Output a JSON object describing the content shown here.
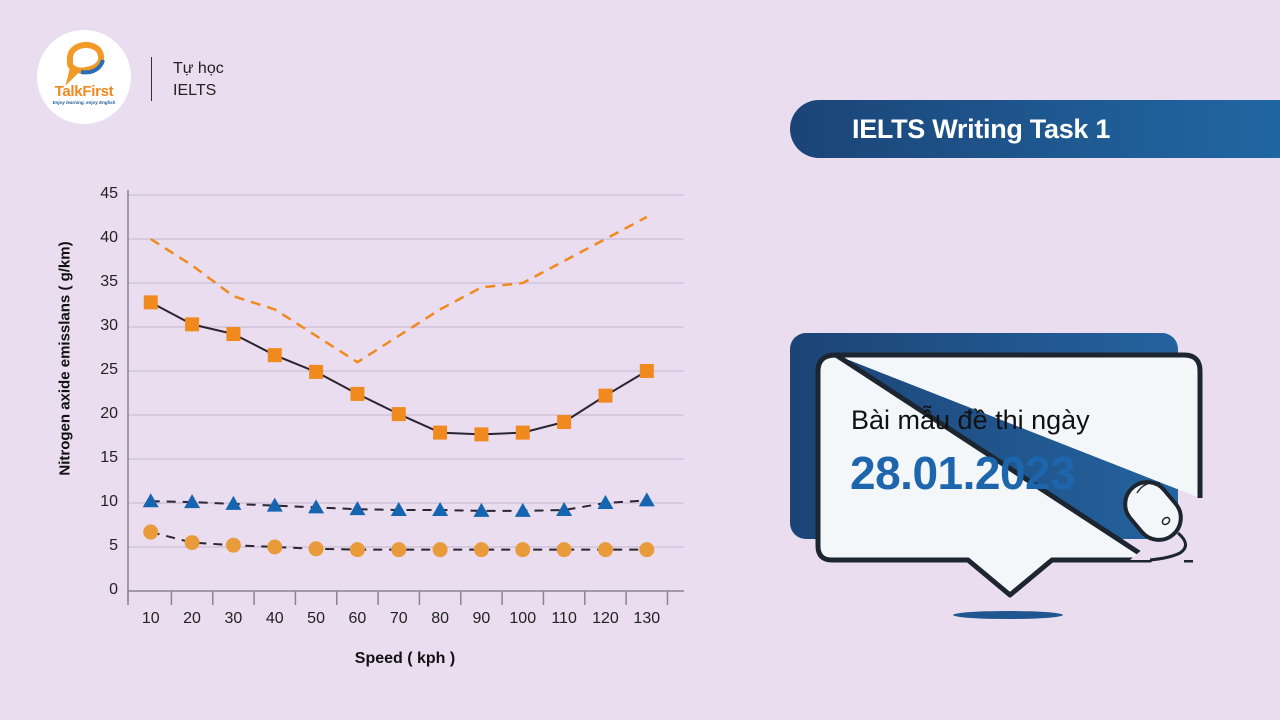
{
  "brand": {
    "logo_name": "TalkFirst",
    "logo_tagline": "Enjoy learning, enjoy English",
    "line1": "Tự học",
    "line2": "IELTS"
  },
  "header": {
    "title": "IELTS Writing Task 1"
  },
  "card": {
    "subtitle": "Bài mẫu đề thi ngày",
    "date": "28.01.2023",
    "icon": "computer-mouse-icon"
  },
  "colors": {
    "background": "#e9ddef",
    "navy": "#1c4476",
    "date_blue": "#1d66ad",
    "orange": "#f08a1e",
    "circle_orange": "#e99a3a",
    "triangle_blue": "#1565b0"
  },
  "chart_data": {
    "type": "line",
    "title": "",
    "xlabel": "Speed ( kph )",
    "ylabel": "Nitrogen axide emisslans ( g/km)",
    "x": [
      10,
      20,
      30,
      40,
      50,
      60,
      70,
      80,
      90,
      100,
      110,
      120,
      130
    ],
    "x_tick_labels": [
      "10",
      "20",
      "30",
      "40",
      "50",
      "60",
      "70",
      "80",
      "90",
      "100",
      "110",
      "120",
      "130"
    ],
    "y_tick_labels": [
      "0",
      "5",
      "10",
      "15",
      "20",
      "25",
      "30",
      "35",
      "40",
      "45"
    ],
    "ylim": [
      0,
      45
    ],
    "grid": "horizontal",
    "legend": "none",
    "series": [
      {
        "name": "orange dashed line (no markers)",
        "style": "dashed",
        "color": "#f08a1e",
        "values": [
          40,
          37,
          33.5,
          32,
          29,
          26,
          29,
          32,
          34.5,
          35,
          37.5,
          40,
          42.5
        ]
      },
      {
        "name": "orange squares (solid line)",
        "style": "solid",
        "color": "#f08a1e",
        "marker": "square",
        "values": [
          32.8,
          30.3,
          29.2,
          26.8,
          24.9,
          22.4,
          20.1,
          18,
          17.8,
          18,
          19.2,
          22.2,
          25
        ]
      },
      {
        "name": "blue triangles (dashed line)",
        "style": "dashed",
        "color": "#1565b0",
        "marker": "triangle",
        "values": [
          10.2,
          10.1,
          9.9,
          9.7,
          9.5,
          9.3,
          9.2,
          9.2,
          9.1,
          9.1,
          9.2,
          10,
          10.3
        ]
      },
      {
        "name": "orange circles (dashed line)",
        "style": "dashed",
        "color": "#e99a3a",
        "marker": "circle",
        "values": [
          6.7,
          5.5,
          5.2,
          5,
          4.8,
          4.7,
          4.7,
          4.7,
          4.7,
          4.7,
          4.7,
          4.7,
          4.7
        ]
      }
    ]
  }
}
